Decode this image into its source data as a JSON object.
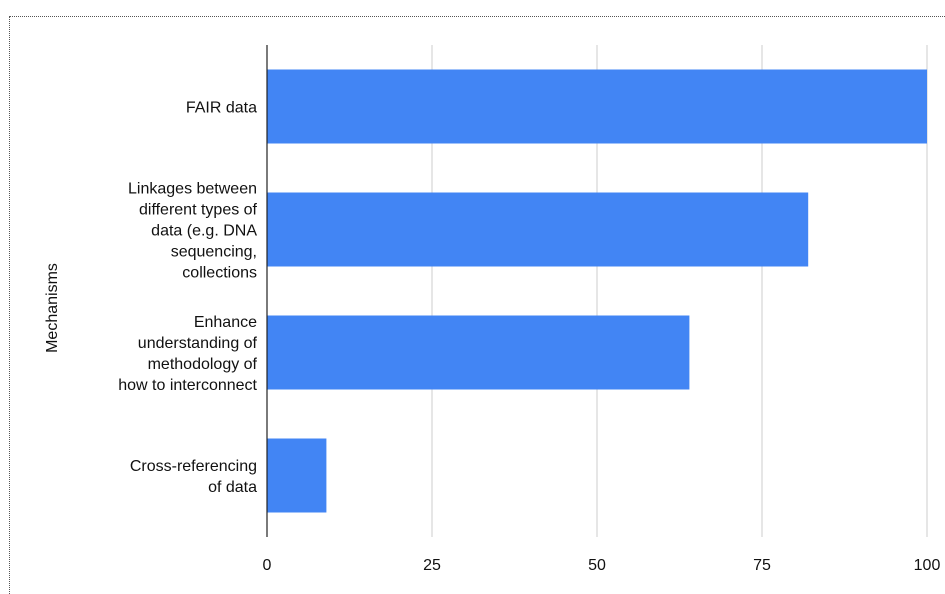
{
  "chart_data": {
    "type": "bar",
    "orientation": "horizontal",
    "categories": [
      [
        "FAIR data"
      ],
      [
        "Linkages between",
        "different types of",
        "data (e.g. DNA",
        "sequencing,",
        "collections"
      ],
      [
        "Enhance",
        "understanding of",
        "methodology of",
        "how to interconnect"
      ],
      [
        "Cross-referencing",
        "of data"
      ]
    ],
    "values": [
      100,
      82,
      64,
      9
    ],
    "ylabel": "Mechanisms",
    "xlim": [
      0,
      100
    ],
    "xticks": [
      0,
      25,
      50,
      75,
      100
    ],
    "grid": true,
    "bar_color": "#4285F4"
  }
}
